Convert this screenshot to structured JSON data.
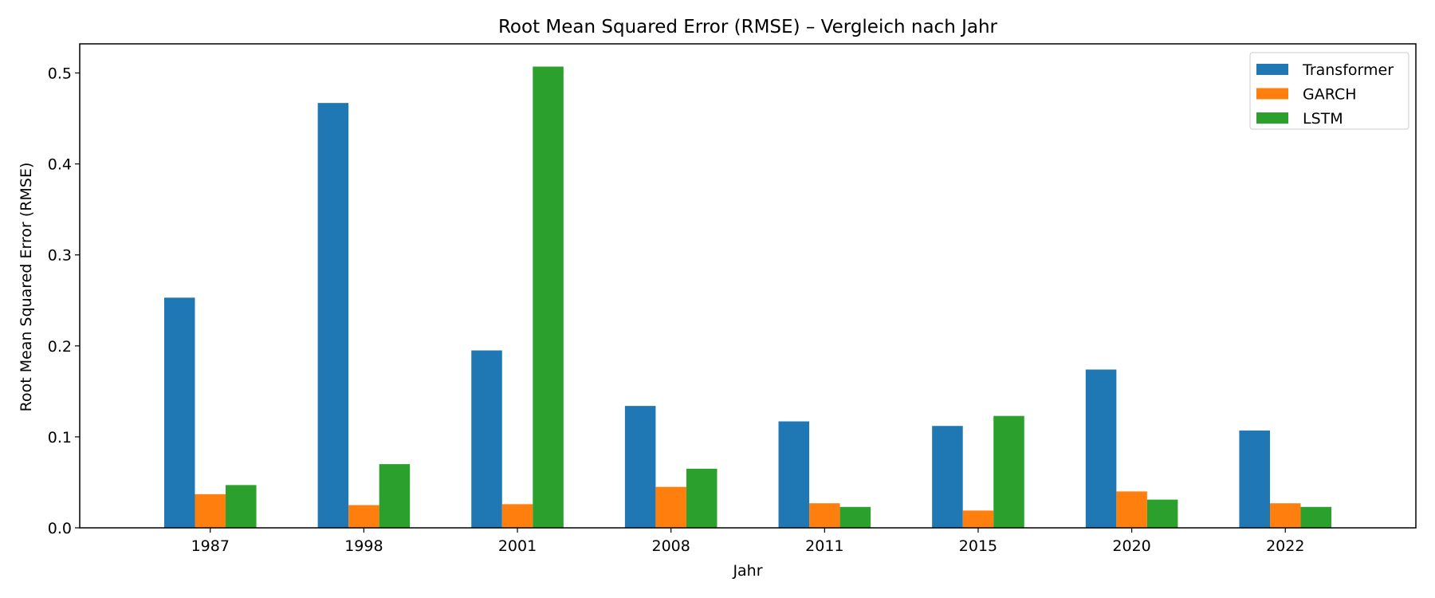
{
  "chart_data": {
    "type": "bar",
    "title": "Root Mean Squared Error (RMSE) – Vergleich nach Jahr",
    "xlabel": "Jahr",
    "ylabel": "Root Mean Squared Error (RMSE)",
    "categories": [
      "1987",
      "1998",
      "2001",
      "2008",
      "2011",
      "2015",
      "2020",
      "2022"
    ],
    "series": [
      {
        "name": "Transformer",
        "color": "#1f77b4",
        "values": [
          0.253,
          0.467,
          0.195,
          0.134,
          0.117,
          0.112,
          0.174,
          0.107
        ]
      },
      {
        "name": "GARCH",
        "color": "#ff7f0e",
        "values": [
          0.037,
          0.025,
          0.026,
          0.045,
          0.027,
          0.019,
          0.04,
          0.027
        ]
      },
      {
        "name": "LSTM",
        "color": "#2ca02c",
        "values": [
          0.047,
          0.07,
          0.507,
          0.065,
          0.023,
          0.123,
          0.031,
          0.023
        ]
      }
    ],
    "ylim": [
      0,
      0.532
    ],
    "yticks": [
      "0.0",
      "0.1",
      "0.2",
      "0.3",
      "0.4",
      "0.5"
    ],
    "grid": false,
    "legend_position": "top-right"
  }
}
